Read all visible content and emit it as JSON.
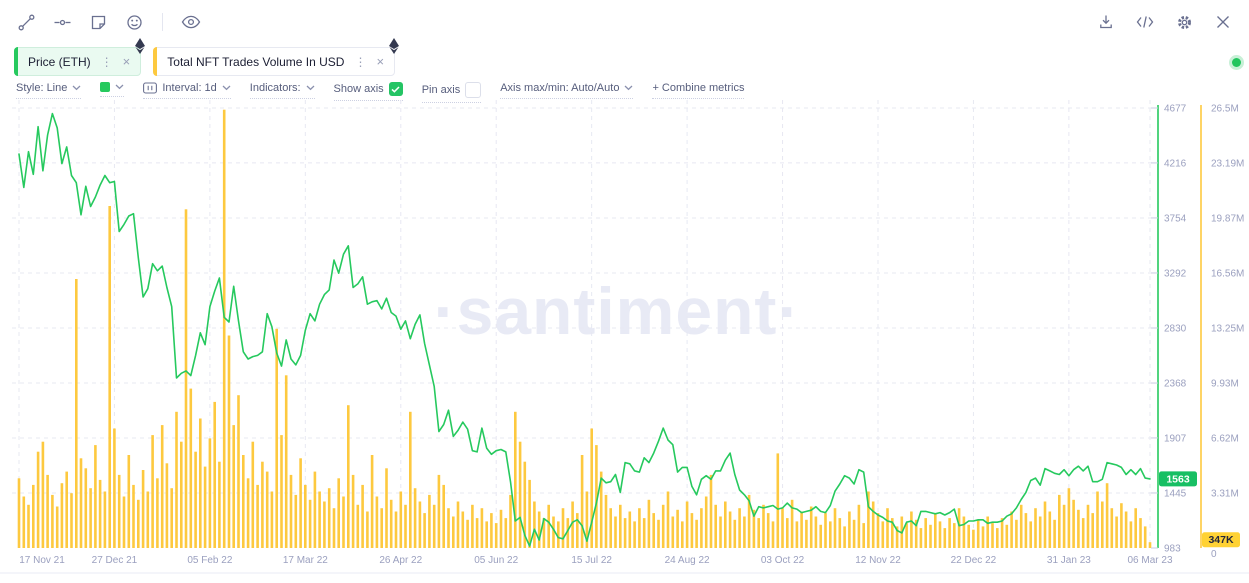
{
  "tabs": [
    {
      "label": "Price (ETH)",
      "accent_color": "#26c95e",
      "selected": true
    },
    {
      "label": "Total NFT Trades Volume In USD",
      "accent_color": "#fdc93f",
      "selected": false
    }
  ],
  "controls": {
    "style": "Style: Line",
    "series_color": "#26c95e",
    "interval": "Interval: 1d",
    "indicators": "Indicators:",
    "show_axis": "Show axis",
    "show_axis_checked": true,
    "pin_axis": "Pin axis",
    "pin_axis_checked": false,
    "axis_maxmin": "Axis max/min: Auto/Auto",
    "combine_metrics": "+ Combine metrics"
  },
  "toolbar_icons": {
    "left": [
      "trendline",
      "horizontal-line",
      "note",
      "emoji",
      "eye"
    ],
    "right": [
      "download",
      "embed-code",
      "settings-gear",
      "close"
    ]
  },
  "status_dot_color": "#22c55e",
  "chart_data": {
    "type": "line+bar",
    "title": "",
    "watermark": "·santiment·",
    "grid": "dashed",
    "x": {
      "tick_labels": [
        "17 Nov 21",
        "27 Dec 21",
        "05 Feb 22",
        "17 Mar 22",
        "26 Apr 22",
        "05 Jun 22",
        "15 Jul 22",
        "24 Aug 22",
        "03 Oct 22",
        "12 Nov 22",
        "22 Dec 22",
        "31 Jan 23",
        "06 Mar 23"
      ],
      "tick_days": [
        0,
        40,
        80,
        120,
        160,
        200,
        240,
        280,
        320,
        360,
        400,
        440,
        474
      ],
      "total_days": 474,
      "sample_step_days": 2
    },
    "price_axis": {
      "color": "#26c95e",
      "tick_values": [
        4677,
        4216,
        3754,
        3292,
        2830,
        2368,
        1907,
        1445,
        983
      ],
      "current_badge": "1563",
      "current_value": 1563
    },
    "volume_axis": {
      "color": "#fdc93f",
      "tick_labels": [
        "26.5M",
        "23.19M",
        "19.87M",
        "16.56M",
        "13.25M",
        "9.93M",
        "6.62M",
        "3.31M",
        "0"
      ],
      "tick_values_m": [
        26.5,
        23.19,
        19.87,
        16.56,
        13.25,
        9.93,
        6.62,
        3.31,
        0
      ],
      "current_badge": "347K",
      "current_value_m": 0.347
    },
    "series": [
      {
        "name": "Price (ETH)",
        "type": "line",
        "color": "#26c95e",
        "values": [
          4290,
          4010,
          4310,
          4120,
          4520,
          4150,
          4450,
          4630,
          4510,
          4210,
          4350,
          4110,
          4050,
          3780,
          4020,
          3850,
          3930,
          4030,
          4110,
          4050,
          4060,
          3640,
          3700,
          3770,
          3790,
          3420,
          3090,
          3160,
          3370,
          3310,
          3350,
          3170,
          3010,
          2410,
          2450,
          2470,
          2430,
          2600,
          2790,
          2690,
          3010,
          3140,
          3250,
          2920,
          2880,
          3180,
          2890,
          2630,
          2570,
          2590,
          2600,
          2630,
          2950,
          2840,
          2620,
          2510,
          2730,
          2570,
          2520,
          2600,
          2810,
          2950,
          2890,
          3030,
          3110,
          3150,
          3400,
          3290,
          3450,
          3520,
          3170,
          3200,
          3260,
          3030,
          3050,
          3060,
          2990,
          3080,
          2960,
          2930,
          2820,
          2890,
          2740,
          2860,
          2940,
          2700,
          2520,
          2340,
          1960,
          2020,
          2140,
          1920,
          1970,
          2040,
          1980,
          1800,
          1790,
          1990,
          1820,
          1770,
          1800,
          1810,
          1790,
          1540,
          1210,
          1240,
          1090,
          1000,
          1140,
          1050,
          1230,
          1200,
          1140,
          1070,
          1060,
          1130,
          1200,
          1220,
          1170,
          1040,
          1200,
          1360,
          1570,
          1530,
          1540,
          1600,
          1450,
          1700,
          1690,
          1630,
          1620,
          1740,
          1700,
          1780,
          1880,
          1990,
          1890,
          1850,
          1620,
          1660,
          1660,
          1500,
          1430,
          1560,
          1590,
          1560,
          1630,
          1630,
          1720,
          1780,
          1600,
          1470,
          1430,
          1380,
          1250,
          1330,
          1320,
          1330,
          1340,
          1310,
          1320,
          1360,
          1320,
          1310,
          1280,
          1290,
          1300,
          1330,
          1290,
          1280,
          1340,
          1460,
          1520,
          1590,
          1570,
          1520,
          1640,
          1620,
          1330,
          1290,
          1260,
          1240,
          1210,
          1200,
          1130,
          1110,
          1200,
          1210,
          1170,
          1290,
          1290,
          1280,
          1270,
          1280,
          1260,
          1280,
          1310,
          1170,
          1180,
          1210,
          1210,
          1220,
          1220,
          1190,
          1200,
          1200,
          1210,
          1250,
          1270,
          1320,
          1390,
          1450,
          1550,
          1570,
          1510,
          1650,
          1630,
          1610,
          1600,
          1640,
          1590,
          1640,
          1670,
          1630,
          1670,
          1540,
          1540,
          1560,
          1700,
          1690,
          1680,
          1660,
          1600,
          1640,
          1600,
          1650,
          1570,
          1563
        ]
      },
      {
        "name": "Total NFT Trades Volume In USD",
        "type": "bar",
        "color": "#fdc93f",
        "unit": "millions USD",
        "values": [
          4.2,
          3.1,
          2.6,
          3.8,
          5.8,
          6.4,
          4.4,
          3.2,
          2.5,
          3.9,
          4.6,
          3.3,
          16.2,
          5.4,
          4.8,
          3.6,
          6.2,
          4.1,
          3.4,
          20.6,
          7.2,
          4.4,
          3.1,
          5.6,
          3.8,
          2.9,
          4.7,
          3.4,
          6.8,
          4.2,
          7.4,
          5.1,
          3.6,
          8.2,
          6.4,
          20.4,
          9.6,
          5.8,
          7.8,
          4.9,
          6.6,
          8.8,
          5.2,
          26.4,
          12.8,
          7.4,
          9.2,
          5.6,
          4.2,
          6.4,
          3.8,
          5.2,
          4.6,
          3.4,
          13.2,
          6.8,
          10.4,
          4.4,
          3.2,
          5.4,
          3.8,
          2.9,
          4.6,
          3.4,
          2.8,
          3.6,
          2.4,
          4.2,
          3.1,
          8.6,
          4.4,
          2.6,
          3.8,
          2.2,
          5.6,
          3.1,
          2.4,
          4.8,
          2.9,
          2.2,
          3.4,
          2.6,
          8.2,
          3.6,
          2.8,
          2.1,
          3.2,
          2.6,
          4.4,
          3.8,
          2.4,
          1.9,
          2.8,
          2.2,
          1.7,
          2.6,
          1.8,
          2.4,
          1.6,
          2.1,
          1.5,
          2.3,
          1.8,
          3.2,
          8.2,
          6.4,
          5.2,
          4.1,
          2.8,
          2.2,
          1.8,
          2.6,
          1.9,
          1.6,
          2.4,
          1.8,
          2.8,
          2.1,
          5.6,
          3.4,
          7.2,
          6.2,
          4.6,
          3.2,
          2.4,
          1.9,
          2.6,
          1.8,
          2.2,
          1.6,
          2.4,
          1.8,
          2.9,
          2.1,
          1.7,
          2.6,
          3.4,
          1.9,
          2.3,
          1.6,
          2.8,
          2.1,
          1.7,
          2.4,
          3.1,
          4.4,
          2.6,
          1.9,
          2.8,
          2.2,
          1.7,
          2.4,
          1.9,
          3.2,
          2.3,
          1.8,
          2.6,
          2.1,
          1.6,
          5.7,
          2.4,
          1.8,
          2.9,
          1.6,
          2.2,
          1.7,
          2.5,
          1.9,
          1.4,
          2.1,
          1.6,
          2.4,
          1.8,
          1.3,
          2.2,
          1.7,
          2.6,
          1.5,
          3.4,
          2.8,
          2.1,
          1.6,
          2.4,
          1.8,
          1.3,
          1.9,
          1.5,
          2.2,
          1.7,
          1.2,
          1.8,
          1.4,
          2.1,
          1.6,
          1.2,
          1.8,
          1.5,
          2.4,
          1.9,
          1.4,
          1.1,
          1.7,
          1.3,
          1.9,
          1.5,
          1.2,
          1.8,
          1.4,
          2.2,
          1.7,
          2.6,
          2.1,
          1.6,
          2.4,
          1.9,
          2.8,
          2.2,
          1.7,
          3.2,
          2.6,
          3.6,
          2.9,
          2.3,
          1.8,
          2.6,
          2.1,
          3.4,
          2.8,
          3.9,
          2.4,
          1.9,
          2.7,
          2.2,
          1.6,
          2.4,
          1.8,
          1.3,
          0.347
        ]
      }
    ]
  }
}
